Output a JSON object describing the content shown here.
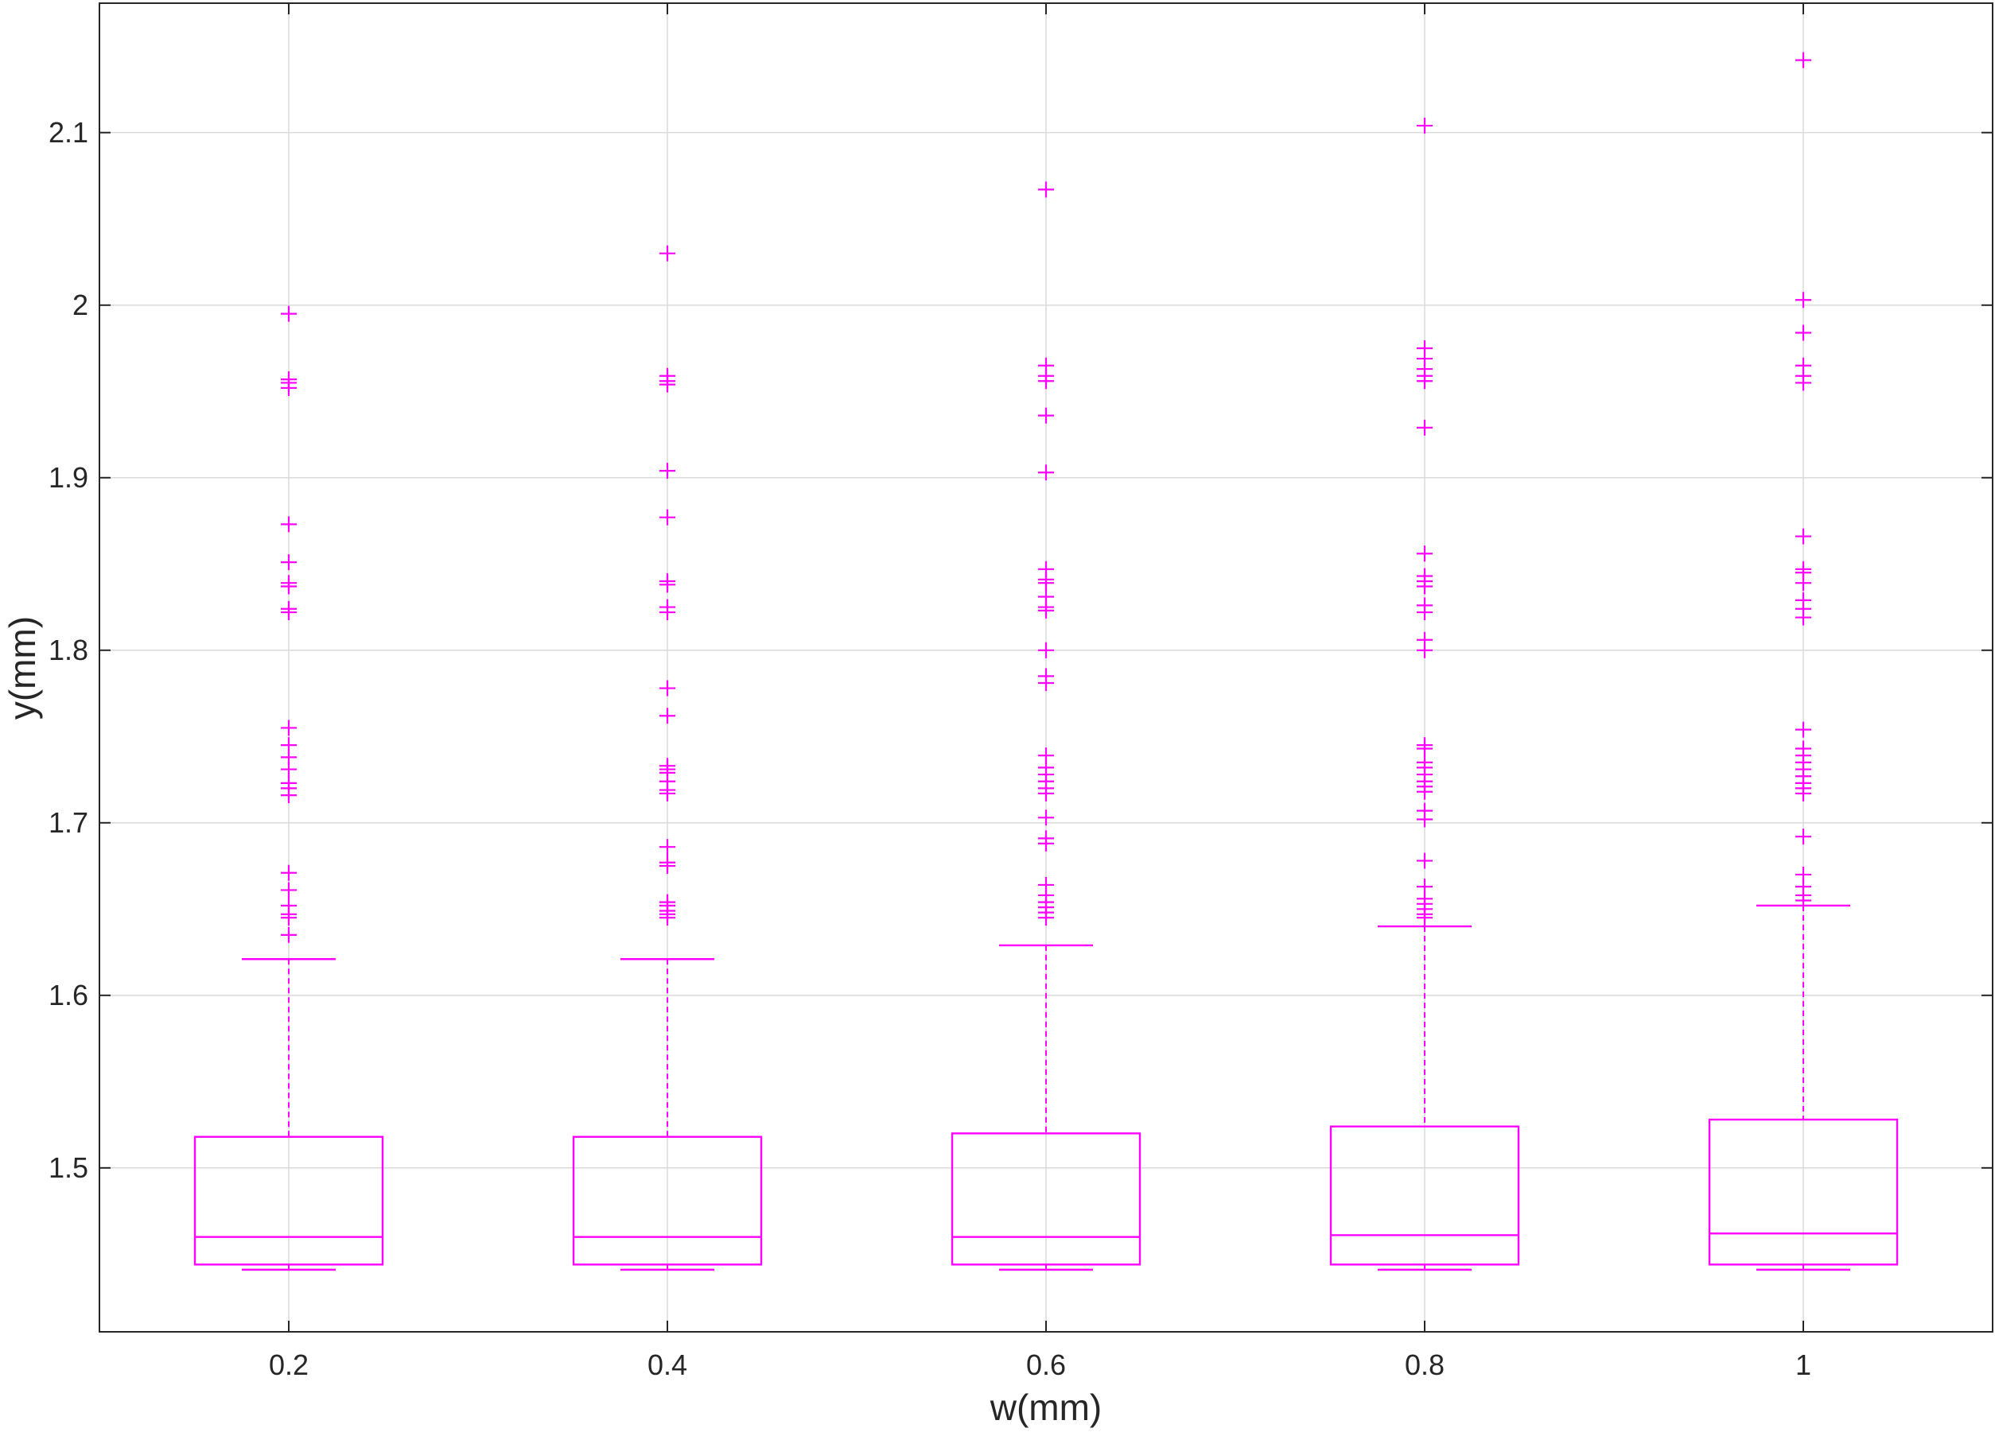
{
  "chart_data": {
    "type": "box",
    "xlabel": "w(mm)",
    "ylabel": "y(mm)",
    "categories": [
      "0.2",
      "0.4",
      "0.6",
      "0.8",
      "1"
    ],
    "xlim": [
      0.1,
      1.1
    ],
    "ylim": [
      1.405,
      2.175
    ],
    "yticks": [
      1.5,
      1.6,
      1.7,
      1.8,
      1.9,
      2,
      2.1
    ],
    "ytick_labels": [
      "1.5",
      "1.6",
      "1.7",
      "1.8",
      "1.9",
      "2",
      "2.1"
    ],
    "grid": true,
    "color": "#ff00ff",
    "boxes": [
      {
        "x": 0.2,
        "label": "0.2",
        "whisker_low": 1.441,
        "q1": 1.444,
        "median": 1.46,
        "q3": 1.518,
        "whisker_high": 1.621,
        "outliers": [
          1.635,
          1.645,
          1.647,
          1.652,
          1.661,
          1.671,
          1.716,
          1.72,
          1.723,
          1.731,
          1.738,
          1.745,
          1.755,
          1.822,
          1.824,
          1.837,
          1.839,
          1.851,
          1.873,
          1.952,
          1.955,
          1.957,
          1.995
        ]
      },
      {
        "x": 0.4,
        "label": "0.4",
        "whisker_low": 1.441,
        "q1": 1.444,
        "median": 1.46,
        "q3": 1.518,
        "whisker_high": 1.621,
        "outliers": [
          1.645,
          1.647,
          1.649,
          1.652,
          1.654,
          1.675,
          1.677,
          1.686,
          1.717,
          1.719,
          1.724,
          1.729,
          1.731,
          1.733,
          1.762,
          1.778,
          1.822,
          1.825,
          1.838,
          1.84,
          1.877,
          1.904,
          1.954,
          1.956,
          1.959,
          2.03
        ]
      },
      {
        "x": 0.6,
        "label": "0.6",
        "whisker_low": 1.441,
        "q1": 1.444,
        "median": 1.46,
        "q3": 1.52,
        "whisker_high": 1.629,
        "outliers": [
          1.645,
          1.648,
          1.651,
          1.654,
          1.658,
          1.664,
          1.688,
          1.691,
          1.703,
          1.717,
          1.72,
          1.724,
          1.728,
          1.732,
          1.739,
          1.781,
          1.785,
          1.8,
          1.823,
          1.825,
          1.831,
          1.839,
          1.841,
          1.847,
          1.903,
          1.936,
          1.956,
          1.959,
          1.965,
          2.067
        ]
      },
      {
        "x": 0.8,
        "label": "0.8",
        "whisker_low": 1.441,
        "q1": 1.444,
        "median": 1.461,
        "q3": 1.524,
        "whisker_high": 1.64,
        "outliers": [
          1.645,
          1.647,
          1.65,
          1.653,
          1.656,
          1.663,
          1.678,
          1.702,
          1.707,
          1.718,
          1.721,
          1.724,
          1.728,
          1.732,
          1.735,
          1.743,
          1.745,
          1.8,
          1.806,
          1.822,
          1.826,
          1.837,
          1.84,
          1.843,
          1.856,
          1.929,
          1.956,
          1.959,
          1.963,
          1.969,
          1.975,
          2.104
        ]
      },
      {
        "x": 1.0,
        "label": "1",
        "whisker_low": 1.441,
        "q1": 1.444,
        "median": 1.462,
        "q3": 1.528,
        "whisker_high": 1.652,
        "outliers": [
          1.655,
          1.658,
          1.663,
          1.67,
          1.692,
          1.717,
          1.72,
          1.723,
          1.727,
          1.731,
          1.735,
          1.739,
          1.743,
          1.754,
          1.819,
          1.824,
          1.829,
          1.839,
          1.845,
          1.847,
          1.866,
          1.955,
          1.959,
          1.965,
          1.984,
          2.003,
          2.142
        ]
      }
    ]
  }
}
